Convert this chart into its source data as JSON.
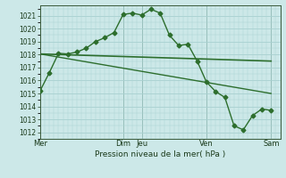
{
  "background_color": "#cce8e8",
  "grid_color": "#a8d0d0",
  "line_color": "#2d6e2d",
  "xlabel": "Pression niveau de la mer( hPa )",
  "ylim": [
    1011.5,
    1021.8
  ],
  "yticks": [
    1012,
    1013,
    1014,
    1015,
    1016,
    1017,
    1018,
    1019,
    1020,
    1021
  ],
  "day_labels": [
    "Mer",
    "Dim",
    "Jeu",
    "Ven",
    "Sam"
  ],
  "day_positions": [
    0,
    9,
    11,
    18,
    25
  ],
  "xlim": [
    0,
    26
  ],
  "series1": {
    "x": [
      0,
      1,
      2,
      3,
      4,
      5,
      6,
      7,
      8,
      9,
      10,
      11,
      12,
      13,
      14,
      15,
      16,
      17,
      18,
      19,
      20,
      21,
      22,
      23,
      24,
      25
    ],
    "y": [
      1015.2,
      1016.6,
      1018.1,
      1018.05,
      1018.2,
      1018.5,
      1019.0,
      1019.3,
      1019.7,
      1021.1,
      1021.2,
      1021.05,
      1021.5,
      1021.2,
      1019.5,
      1018.7,
      1018.8,
      1017.5,
      1015.9,
      1015.15,
      1014.7,
      1012.5,
      1012.2,
      1013.3,
      1013.8,
      1013.7
    ],
    "marker": "D",
    "markersize": 2.5,
    "linewidth": 1.0
  },
  "series2": {
    "x": [
      0,
      25
    ],
    "y": [
      1018.05,
      1017.5
    ],
    "linewidth": 1.2
  },
  "series3": {
    "x": [
      0,
      25
    ],
    "y": [
      1018.05,
      1015.0
    ],
    "linewidth": 1.0
  },
  "vline_positions": [
    0,
    9,
    11,
    18,
    25
  ],
  "figsize": [
    3.2,
    2.0
  ],
  "dpi": 100
}
